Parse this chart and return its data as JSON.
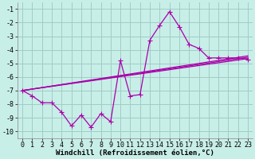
{
  "background_color": "#c8eee8",
  "grid_color": "#a0ccc4",
  "line_color": "#aa00aa",
  "xlim": [
    -0.5,
    23.5
  ],
  "ylim": [
    -10.5,
    -0.5
  ],
  "yticks": [
    -1,
    -2,
    -3,
    -4,
    -5,
    -6,
    -7,
    -8,
    -9,
    -10
  ],
  "xticks": [
    0,
    1,
    2,
    3,
    4,
    5,
    6,
    7,
    8,
    9,
    10,
    11,
    12,
    13,
    14,
    15,
    16,
    17,
    18,
    19,
    20,
    21,
    22,
    23
  ],
  "xlabel": "Windchill (Refroidissement éolien,°C)",
  "xlabel_fontsize": 6.5,
  "tick_fontsize": 6.0,
  "series1_x": [
    0,
    1,
    2,
    3,
    4,
    5,
    6,
    7,
    8,
    9,
    10,
    11,
    12,
    13,
    14,
    15,
    16,
    17,
    18,
    19,
    20,
    21,
    22,
    23
  ],
  "series1_y": [
    -7.0,
    -7.4,
    -7.9,
    -7.9,
    -8.6,
    -9.6,
    -8.8,
    -9.7,
    -8.7,
    -9.3,
    -4.8,
    -7.4,
    -7.3,
    -3.3,
    -2.2,
    -1.2,
    -2.3,
    -3.6,
    -3.9,
    -4.6,
    -4.6,
    -4.6,
    -4.6,
    -4.7
  ],
  "line1_x": [
    0,
    23
  ],
  "line1_y": [
    -7.0,
    -4.55
  ],
  "line2_x": [
    0,
    23
  ],
  "line2_y": [
    -7.0,
    -4.45
  ],
  "line3_x": [
    0,
    23
  ],
  "line3_y": [
    -7.0,
    -4.65
  ]
}
